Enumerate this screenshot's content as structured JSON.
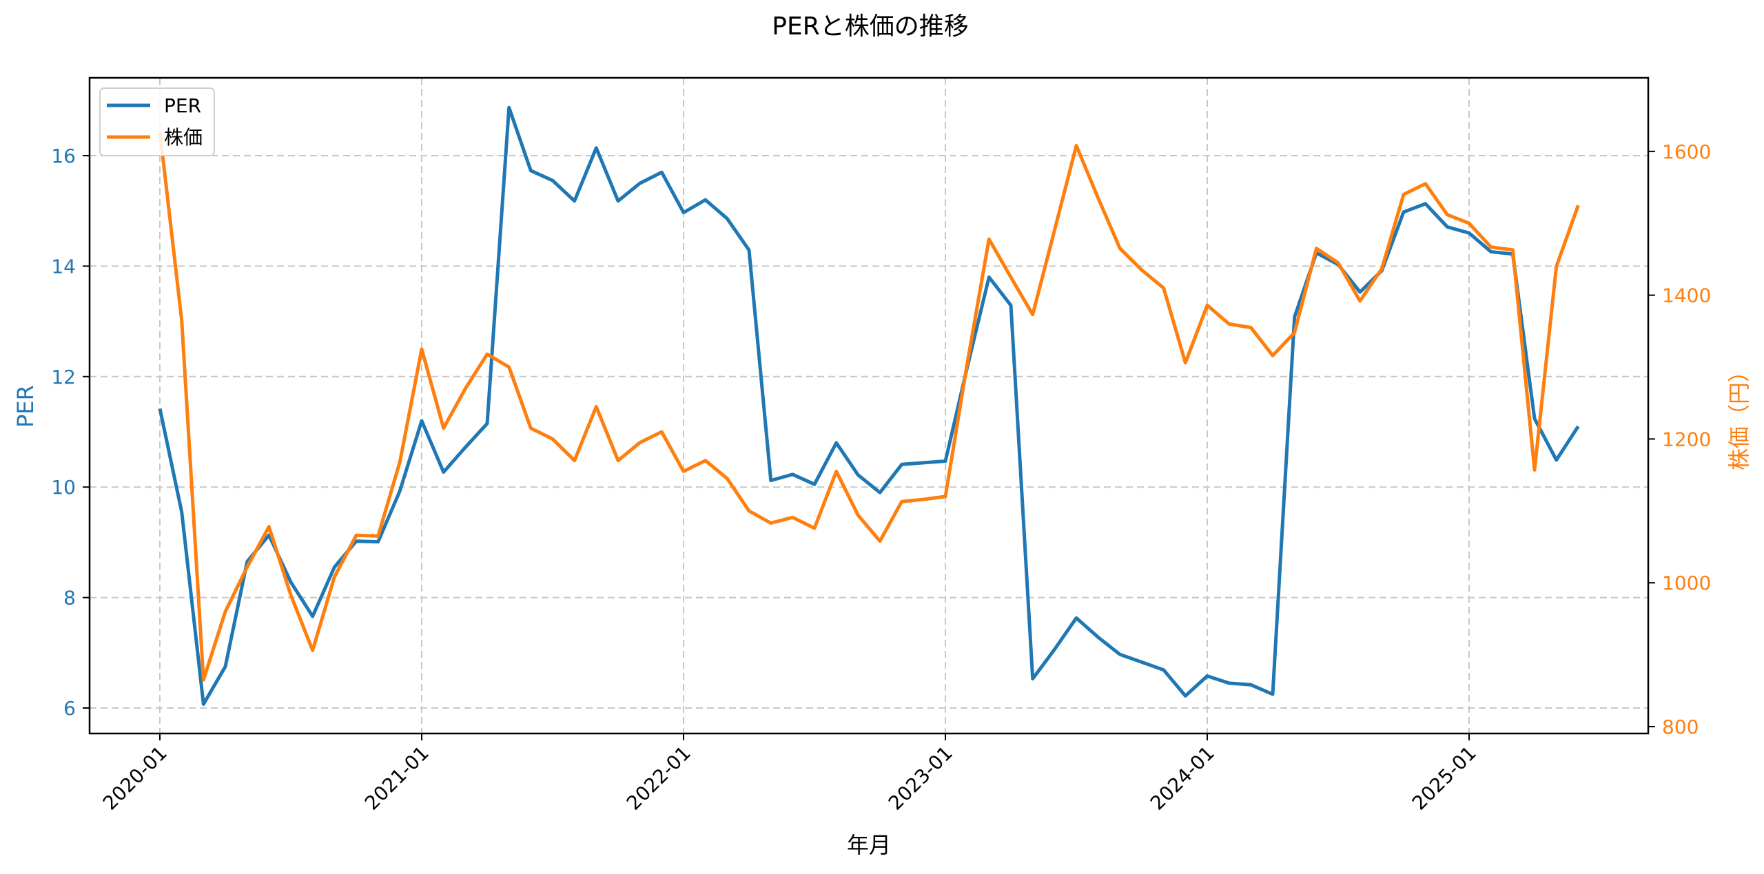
{
  "chart_data": {
    "type": "line",
    "title": "PERと株価の推移",
    "xlabel": "年月",
    "ylabel_left": "PER",
    "ylabel_right": "株価（円）",
    "x_ticks": [
      "2020-01",
      "2021-01",
      "2022-01",
      "2023-01",
      "2024-01",
      "2025-01"
    ],
    "y_left_ticks": [
      6,
      8,
      10,
      12,
      14,
      16
    ],
    "y_right_ticks": [
      800,
      1000,
      1200,
      1400,
      1600
    ],
    "ylim_left": [
      5.6,
      17.6
    ],
    "ylim_right": [
      790,
      1690
    ],
    "grid": true,
    "legend_position": "upper left",
    "x": [
      "2020-01",
      "2020-02",
      "2020-03",
      "2020-04",
      "2020-05",
      "2020-06",
      "2020-07",
      "2020-08",
      "2020-09",
      "2020-10",
      "2020-11",
      "2020-12",
      "2021-01",
      "2021-02",
      "2021-03",
      "2021-04",
      "2021-05",
      "2021-06",
      "2021-07",
      "2021-08",
      "2021-09",
      "2021-10",
      "2021-11",
      "2021-12",
      "2022-01",
      "2022-02",
      "2022-03",
      "2022-04",
      "2022-05",
      "2022-06",
      "2022-07",
      "2022-08",
      "2022-09",
      "2022-10",
      "2022-11",
      "2022-12",
      "2023-01",
      "2023-02",
      "2023-03",
      "2023-04",
      "2023-05",
      "2023-06",
      "2023-07",
      "2023-08",
      "2023-09",
      "2023-10",
      "2023-11",
      "2023-12",
      "2024-01",
      "2024-02",
      "2024-03",
      "2024-04",
      "2024-05",
      "2024-06",
      "2024-07",
      "2024-08",
      "2024-09",
      "2024-10",
      "2024-11",
      "2024-12",
      "2025-01",
      "2025-02",
      "2025-03",
      "2025-04",
      "2025-05",
      "2025-06"
    ],
    "series": [
      {
        "name": "PER",
        "color": "#1f77b4",
        "axis": "left",
        "values": [
          11.42,
          9.55,
          6.07,
          6.75,
          8.65,
          9.13,
          8.28,
          7.66,
          8.55,
          9.02,
          9.01,
          9.93,
          11.2,
          10.27,
          10.72,
          11.15,
          16.87,
          15.73,
          15.55,
          15.18,
          16.14,
          15.18,
          15.5,
          15.7,
          14.97,
          15.2,
          14.86,
          14.29,
          10.12,
          10.23,
          10.05,
          10.8,
          10.22,
          9.9,
          10.41,
          10.44,
          10.47,
          12.17,
          13.8,
          13.29,
          6.53,
          7.06,
          7.63,
          7.28,
          6.97,
          6.83,
          6.69,
          6.22,
          6.58,
          6.45,
          6.42,
          6.25,
          13.08,
          14.24,
          14.03,
          13.53,
          13.92,
          14.98,
          15.13,
          14.71,
          14.6,
          14.26,
          14.22,
          11.24,
          10.49,
          11.1
        ]
      },
      {
        "name": "株価",
        "color": "#ff7f0e",
        "axis": "right",
        "values": [
          1628,
          1365,
          865,
          960,
          1022,
          1078,
          983,
          906,
          1008,
          1066,
          1065,
          1168,
          1325,
          1215,
          1270,
          1318,
          1300,
          1215,
          1200,
          1170,
          1245,
          1170,
          1195,
          1210,
          1155,
          1170,
          1145,
          1100,
          1083,
          1091,
          1076,
          1155,
          1094,
          1058,
          1113,
          1116,
          1120,
          1305,
          1478,
          1425,
          1373,
          1490,
          1608,
          1535,
          1465,
          1435,
          1410,
          1306,
          1386,
          1360,
          1355,
          1316,
          1348,
          1465,
          1445,
          1392,
          1437,
          1540,
          1555,
          1512,
          1500,
          1467,
          1463,
          1157,
          1440,
          1525
        ]
      }
    ]
  },
  "legend": {
    "items": [
      {
        "label": "PER",
        "color": "#1f77b4"
      },
      {
        "label": "株価",
        "color": "#ff7f0e"
      }
    ]
  }
}
